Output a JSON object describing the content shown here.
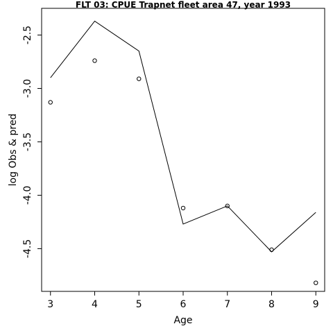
{
  "chart_data": {
    "type": "line",
    "title": "FLT 03: CPUE Trapnet fleet area 47, year 1993",
    "xlabel": "Age",
    "ylabel": "log Obs & pred",
    "x": [
      3,
      4,
      5,
      6,
      7,
      8,
      9
    ],
    "xlim": [
      2.8,
      9.2
    ],
    "ylim": [
      -4.9,
      -2.25
    ],
    "x_ticks": [
      3,
      4,
      5,
      6,
      7,
      8,
      9
    ],
    "y_ticks": [
      -2.5,
      -3.0,
      -3.5,
      -4.0,
      -4.5
    ],
    "y_tick_labels": [
      "-2.5",
      "-3.0",
      "-3.5",
      "-4.0",
      "-4.5"
    ],
    "grid": false,
    "series": [
      {
        "type": "scatter",
        "marker": "open-circle",
        "values": [
          -3.13,
          -2.74,
          -2.91,
          -4.12,
          -4.1,
          -4.51,
          -4.82
        ]
      },
      {
        "type": "line",
        "values": [
          -2.9,
          -2.37,
          -2.65,
          -4.27,
          -4.1,
          -4.53,
          -4.16
        ]
      }
    ],
    "colors": {
      "line": "#000000",
      "points": "#000000",
      "axes": "#000000"
    }
  }
}
